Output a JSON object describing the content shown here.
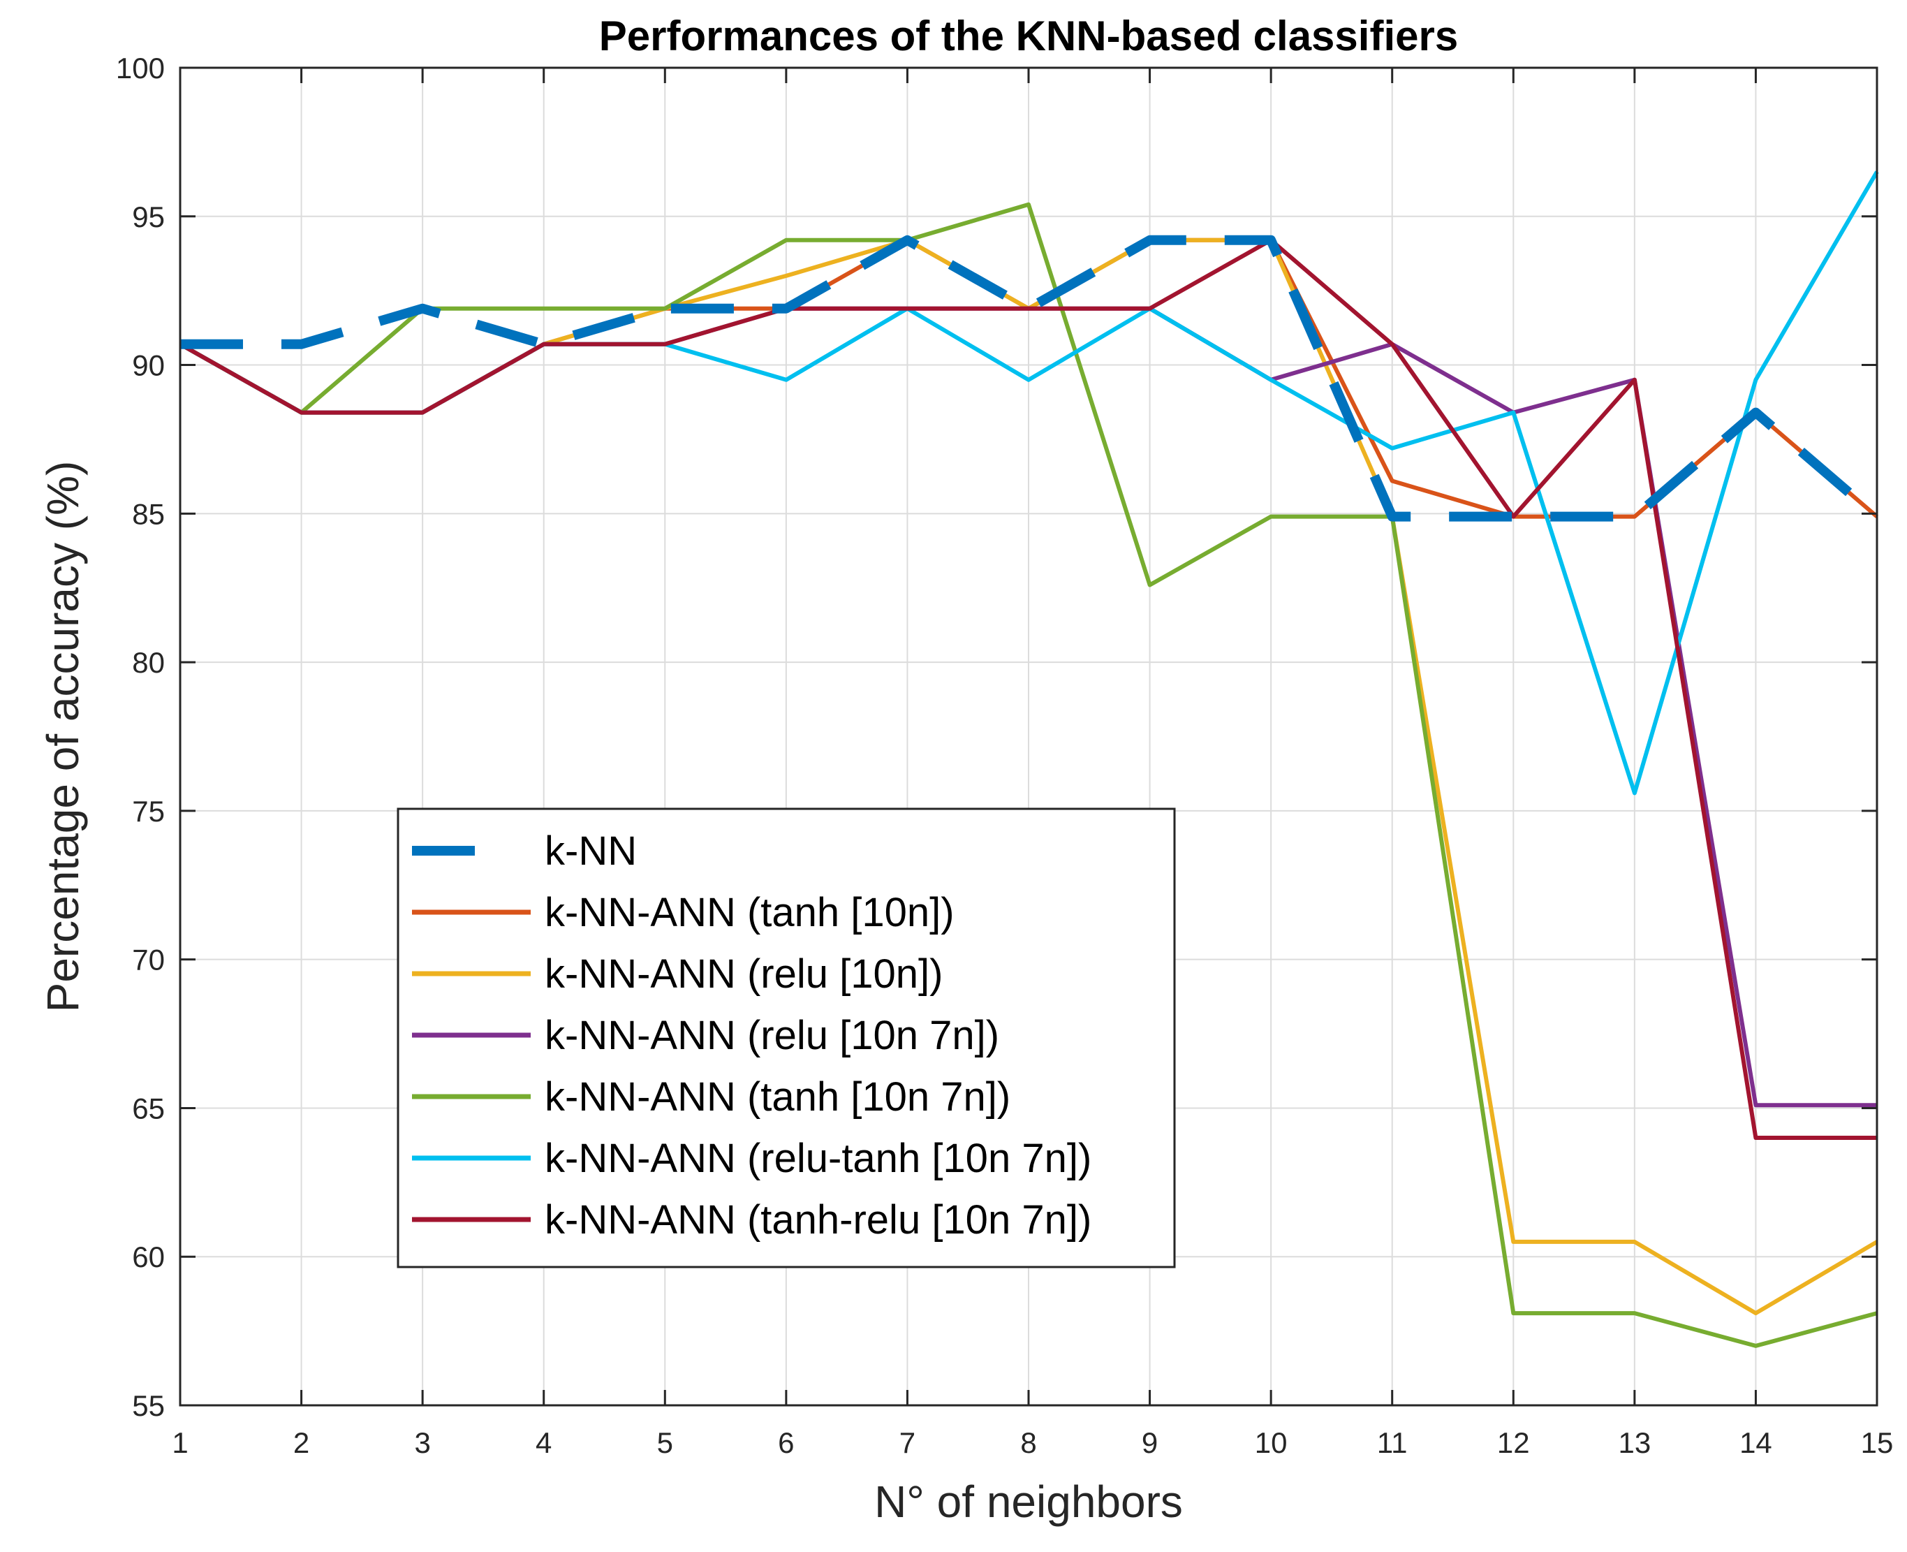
{
  "chart_data": {
    "type": "line",
    "title": "Performances of the KNN-based classifiers",
    "xlabel": "N° of neighbors",
    "ylabel": "Percentage of accuracy (%)",
    "xlim": [
      1,
      15
    ],
    "ylim": [
      55,
      100
    ],
    "grid": true,
    "legend_position": "lower-left",
    "x": [
      1,
      2,
      3,
      4,
      5,
      6,
      7,
      8,
      9,
      10,
      11,
      12,
      13,
      14,
      15
    ],
    "xticks": [
      "1",
      "2",
      "3",
      "4",
      "5",
      "6",
      "7",
      "8",
      "9",
      "10",
      "11",
      "12",
      "13",
      "14",
      "15"
    ],
    "yticks": [
      "55",
      "60",
      "65",
      "70",
      "75",
      "80",
      "85",
      "90",
      "95",
      "100"
    ],
    "series": [
      {
        "name": "k-NN",
        "color": "#0072BD",
        "style": "dashed-thick",
        "values": [
          90.7,
          90.7,
          91.9,
          90.7,
          91.9,
          91.9,
          94.2,
          91.9,
          94.2,
          94.2,
          84.9,
          84.9,
          84.9,
          88.4,
          84.9
        ]
      },
      {
        "name": "k-NN-ANN (tanh [10n])",
        "color": "#D95319",
        "style": "solid",
        "values": [
          90.7,
          88.4,
          88.4,
          90.7,
          91.9,
          91.9,
          94.2,
          91.9,
          94.2,
          94.2,
          86.1,
          84.9,
          84.9,
          88.4,
          84.9
        ]
      },
      {
        "name": "k-NN-ANN (relu [10n])",
        "color": "#EDB120",
        "style": "solid",
        "values": [
          90.7,
          88.4,
          88.4,
          90.7,
          91.9,
          93.0,
          94.2,
          91.9,
          94.2,
          94.2,
          84.9,
          60.5,
          60.5,
          58.1,
          60.5
        ]
      },
      {
        "name": "k-NN-ANN (relu [10n 7n])",
        "color": "#7E2F8E",
        "style": "solid",
        "values": [
          90.7,
          88.4,
          88.4,
          90.7,
          90.7,
          91.9,
          91.9,
          91.9,
          91.9,
          89.5,
          90.7,
          88.4,
          89.5,
          65.1,
          65.1
        ]
      },
      {
        "name": "k-NN-ANN (tanh [10n 7n])",
        "color": "#77AC30",
        "style": "solid",
        "values": [
          90.7,
          88.4,
          91.9,
          91.9,
          91.9,
          94.2,
          94.2,
          95.4,
          82.6,
          84.9,
          84.9,
          58.1,
          58.1,
          57.0,
          58.1
        ]
      },
      {
        "name": "k-NN-ANN (relu-tanh [10n 7n])",
        "color": "#00BFEF",
        "style": "solid",
        "values": [
          90.7,
          88.4,
          88.4,
          90.7,
          90.7,
          89.5,
          91.9,
          89.5,
          91.9,
          89.5,
          87.2,
          88.4,
          75.6,
          89.5,
          96.5
        ]
      },
      {
        "name": "k-NN-ANN (tanh-relu [10n 7n])",
        "color": "#A2142F",
        "style": "solid",
        "values": [
          90.7,
          88.4,
          88.4,
          90.7,
          90.7,
          91.9,
          91.9,
          91.9,
          91.9,
          94.2,
          90.7,
          84.9,
          89.5,
          64.0,
          64.0
        ]
      }
    ]
  }
}
